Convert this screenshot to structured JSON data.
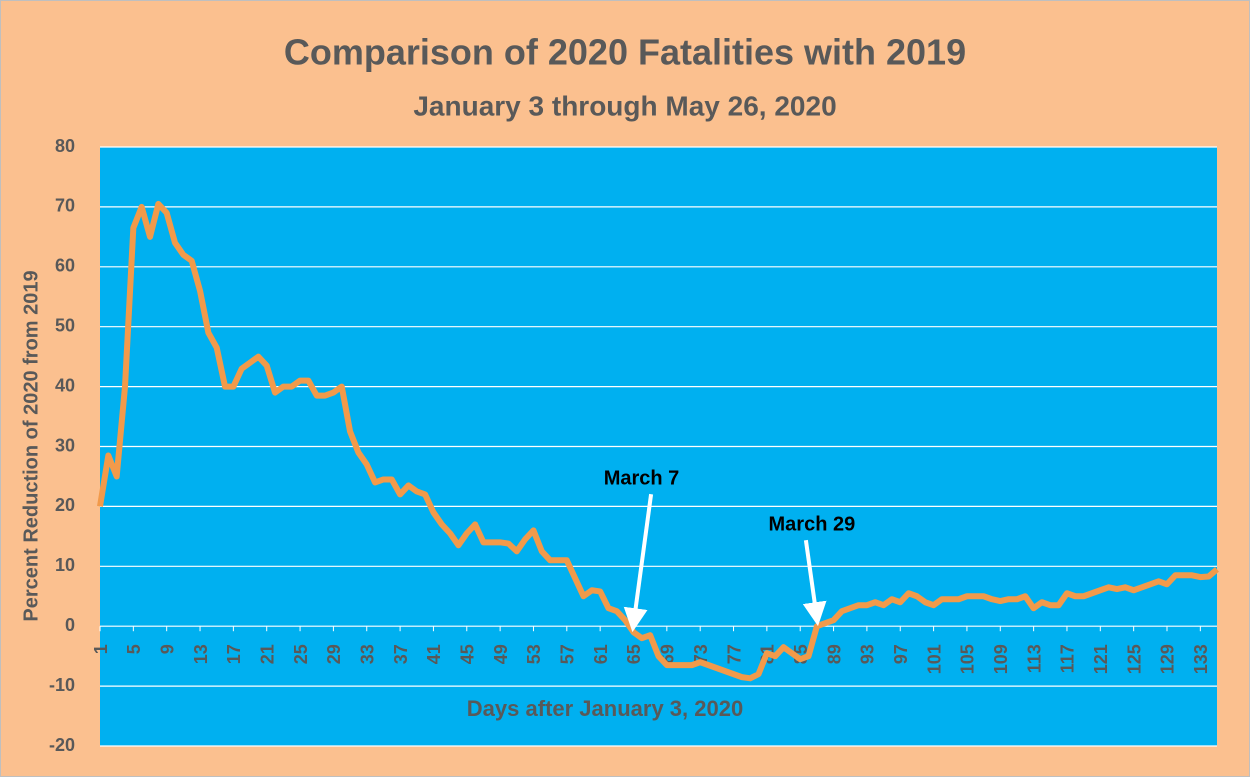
{
  "chart_data": {
    "type": "line",
    "title": "Comparison of 2020 Fatalities with 2019",
    "subtitle": "January 3 through May 26, 2020",
    "x_label": "Days after January 3, 2020",
    "y_label": "Percent Reduction of 2020 from 2019",
    "x": [
      1,
      2,
      3,
      4,
      5,
      6,
      7,
      8,
      9,
      10,
      11,
      12,
      13,
      14,
      15,
      16,
      17,
      18,
      19,
      20,
      21,
      22,
      23,
      24,
      25,
      26,
      27,
      28,
      29,
      30,
      31,
      32,
      33,
      34,
      35,
      36,
      37,
      38,
      39,
      40,
      41,
      42,
      43,
      44,
      45,
      46,
      47,
      48,
      49,
      50,
      51,
      52,
      53,
      54,
      55,
      56,
      57,
      58,
      59,
      60,
      61,
      62,
      63,
      64,
      65,
      66,
      67,
      68,
      69,
      70,
      71,
      72,
      73,
      74,
      75,
      76,
      77,
      78,
      79,
      80,
      81,
      82,
      83,
      84,
      85,
      86,
      87,
      88,
      89,
      90,
      91,
      92,
      93,
      94,
      95,
      96,
      97,
      98,
      99,
      100,
      101,
      102,
      103,
      104,
      105,
      106,
      107,
      108,
      109,
      110,
      111,
      112,
      113,
      114,
      115,
      116,
      117,
      118,
      119,
      120,
      121,
      122,
      123,
      124,
      125,
      126,
      127,
      128,
      129,
      130,
      131,
      132,
      133,
      134,
      135
    ],
    "series": [
      {
        "name": "Percent Reduction",
        "color": "#f29a4a",
        "values": [
          20,
          28.5,
          25,
          40,
          66.5,
          70,
          65,
          70.5,
          69,
          64,
          62,
          61,
          56,
          49,
          46.5,
          40,
          40,
          43,
          44,
          45,
          43.5,
          39,
          40,
          40,
          41,
          41,
          38.5,
          38.5,
          39,
          40,
          32.5,
          29,
          27,
          24,
          24.5,
          24.5,
          22,
          23.5,
          22.5,
          22,
          19,
          17,
          15.5,
          13.5,
          15.5,
          17,
          14,
          14,
          14,
          13.8,
          12.5,
          14.5,
          16,
          12.5,
          11,
          11,
          11,
          8,
          5,
          6,
          5.8,
          3,
          2.5,
          1,
          -1,
          -2,
          -1.5,
          -5,
          -6.5,
          -6.5,
          -6.5,
          -6.5,
          -6,
          -6.5,
          -7,
          -7.5,
          -8,
          -8.5,
          -8.7,
          -8,
          -4.5,
          -5,
          -3.5,
          -4.5,
          -5.5,
          -5,
          0,
          0.5,
          1,
          2.5,
          3,
          3.5,
          3.5,
          4,
          3.5,
          4.5,
          4,
          5.5,
          5,
          4,
          3.5,
          4.5,
          4.5,
          4.5,
          5,
          5,
          5,
          4.5,
          4.2,
          4.5,
          4.5,
          5,
          3,
          4,
          3.5,
          3.5,
          5.5,
          5,
          5,
          5.5,
          6,
          6.5,
          6.2,
          6.5,
          6,
          6.5,
          7,
          7.5,
          7,
          8.5,
          8.5,
          8.5,
          8.2,
          8.3,
          9.5
        ]
      }
    ],
    "xlim": [
      1,
      135
    ],
    "xticks": [
      1,
      5,
      9,
      13,
      17,
      21,
      25,
      29,
      33,
      37,
      41,
      45,
      49,
      53,
      57,
      61,
      65,
      69,
      73,
      77,
      81,
      85,
      89,
      93,
      97,
      101,
      105,
      109,
      113,
      117,
      121,
      125,
      129,
      133
    ],
    "ylim": [
      -20,
      80
    ],
    "yticks": [
      -20,
      -10,
      0,
      10,
      20,
      30,
      40,
      50,
      60,
      70,
      80
    ],
    "grid": true,
    "background_color": "#fbc08f",
    "plot_color": "#00b0f0",
    "annotations": [
      {
        "text": "March 7",
        "x": 65
      },
      {
        "text": "March 29",
        "x": 87
      }
    ]
  }
}
